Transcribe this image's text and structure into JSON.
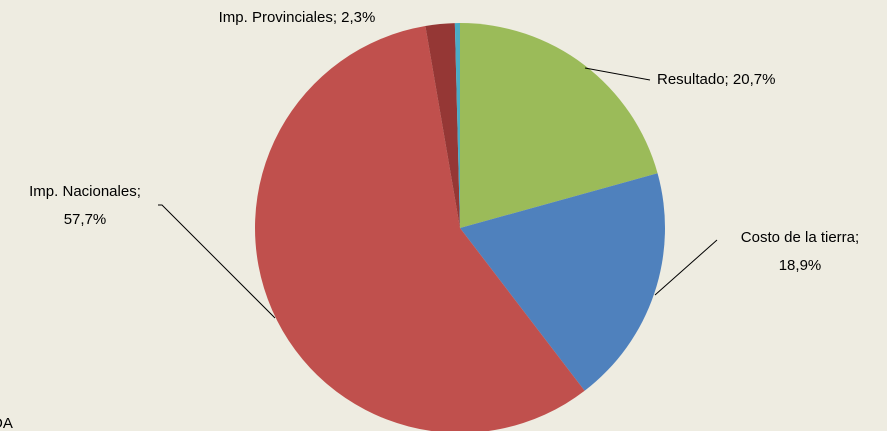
{
  "chart_data": {
    "type": "pie",
    "values": [
      20.7,
      18.9,
      57.7,
      2.3,
      0.4
    ],
    "value_labels": [
      "Resultado; 20,7%",
      "Costo de la tierra;\n18,9%",
      "Imp. Nacionales;\n57,7%",
      "Imp. Provinciales; 2,3%",
      null
    ],
    "colors": [
      "#9bbb59",
      "#4f81bd",
      "#c0504d",
      "#953735",
      "#4bacc6"
    ],
    "note": "DA"
  }
}
